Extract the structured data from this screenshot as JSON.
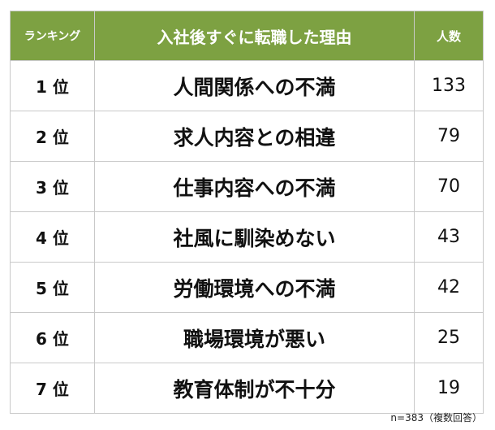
{
  "header": {
    "rank": "ランキング",
    "reason": "入社後すぐに転職した理由",
    "count": "人数"
  },
  "colors": {
    "header_bg": "#7da142",
    "header_text": "#ffffff",
    "border": "#c9c9c9"
  },
  "chart_data": {
    "type": "table",
    "columns": [
      "ランキング",
      "入社後すぐに転職した理由",
      "人数"
    ],
    "rows": [
      {
        "rank": "1 位",
        "reason": "人間関係への不満",
        "count": 133
      },
      {
        "rank": "2 位",
        "reason": "求人内容との相違",
        "count": 79
      },
      {
        "rank": "3 位",
        "reason": "仕事内容への不満",
        "count": 70
      },
      {
        "rank": "4 位",
        "reason": "社風に馴染めない",
        "count": 43
      },
      {
        "rank": "5 位",
        "reason": "労働環境への不満",
        "count": 42
      },
      {
        "rank": "6 位",
        "reason": "職場環境が悪い",
        "count": 25
      },
      {
        "rank": "7 位",
        "reason": "教育体制が不十分",
        "count": 19
      }
    ],
    "note": "n=383（複数回答）"
  }
}
